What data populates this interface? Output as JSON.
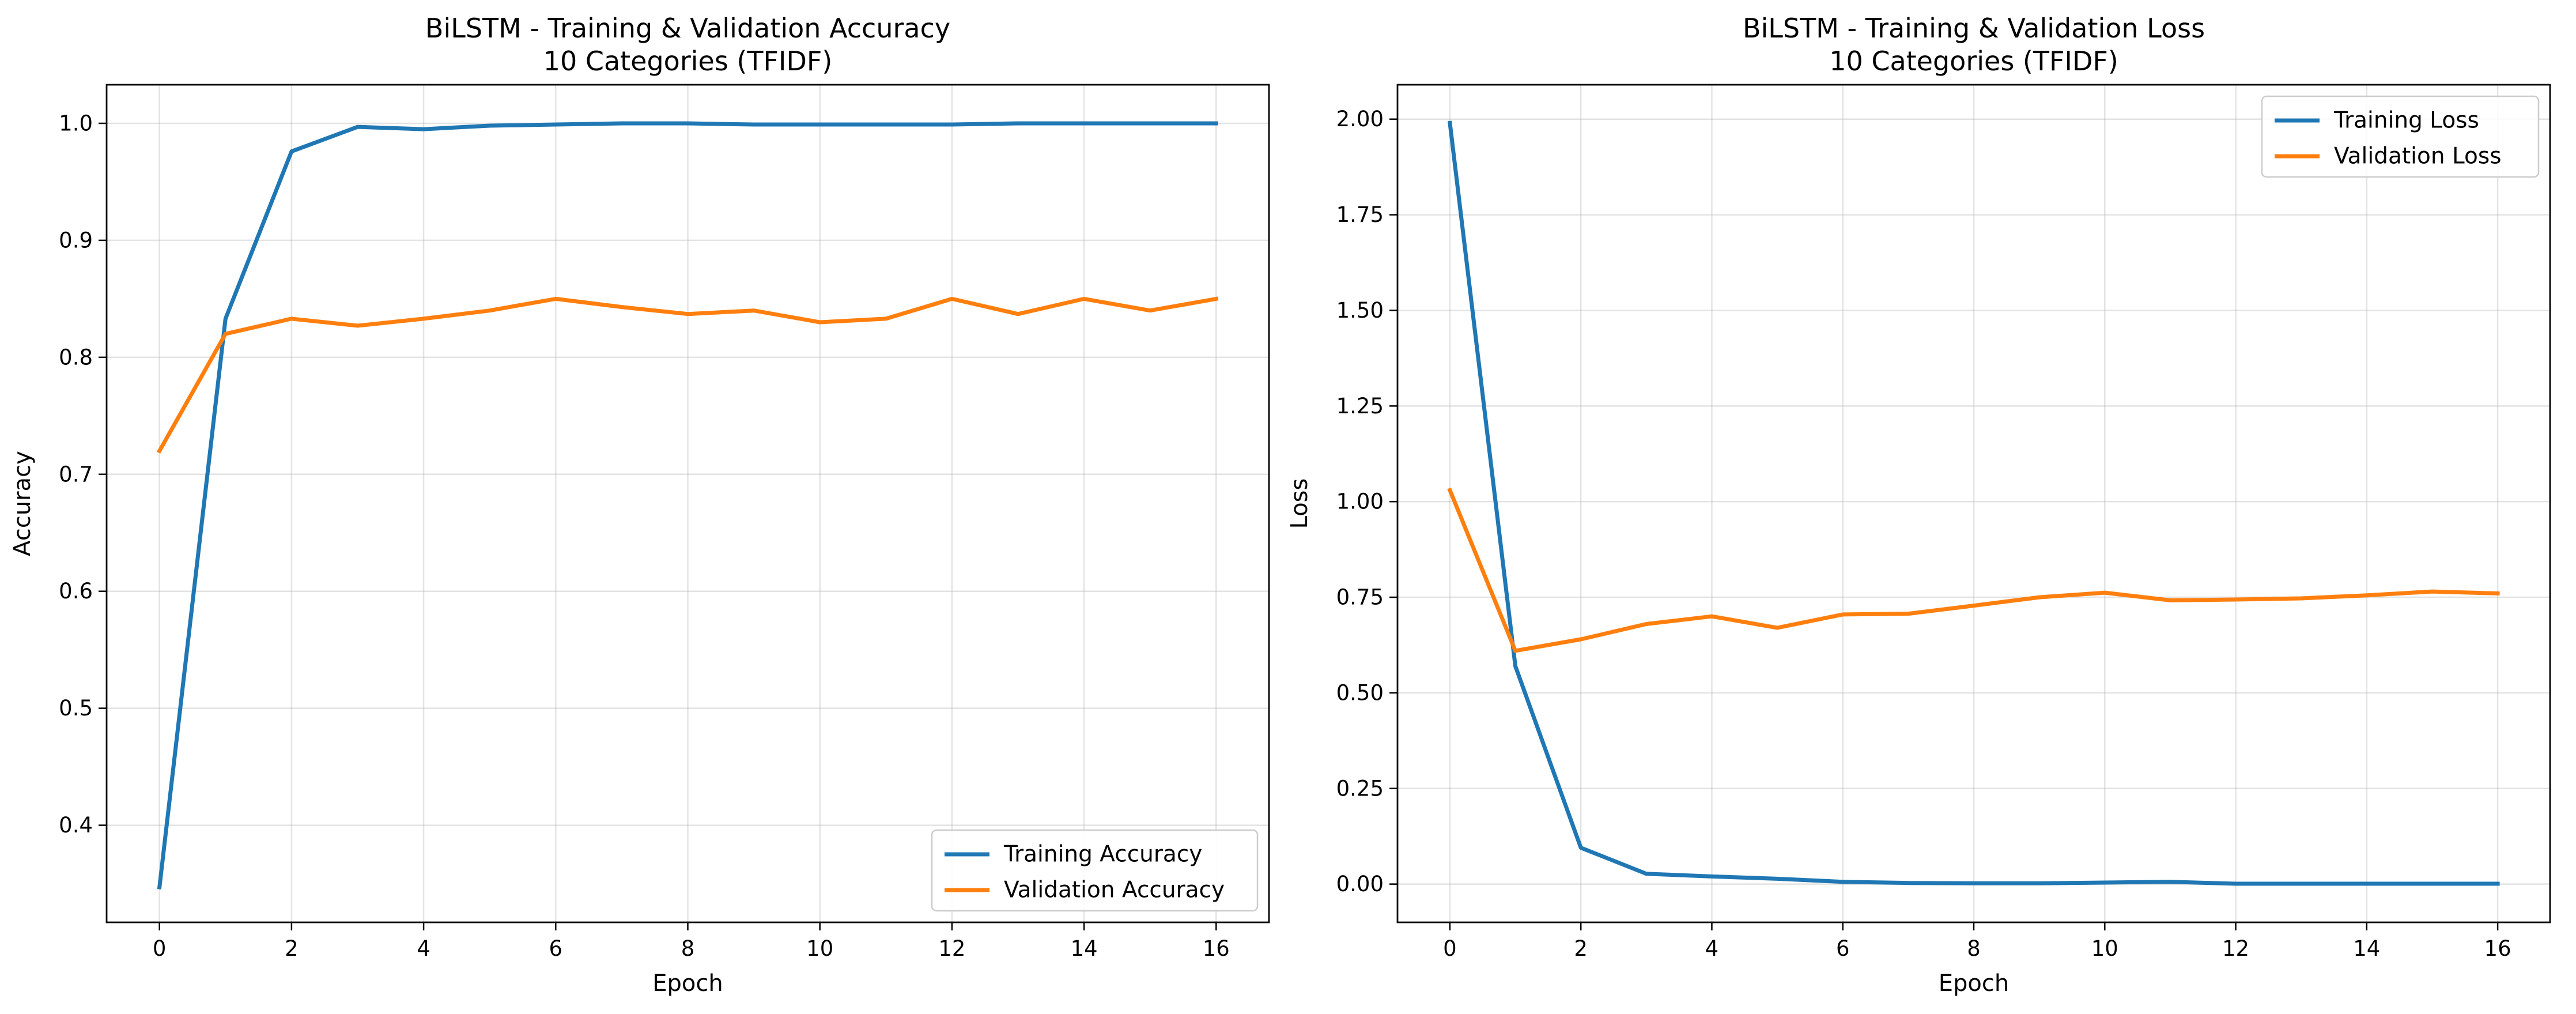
{
  "chart_data": [
    {
      "type": "line",
      "title_lines": [
        "BiLSTM - Training & Validation Accuracy",
        "10 Categories (TFIDF)"
      ],
      "xlabel": "Epoch",
      "ylabel": "Accuracy",
      "xlim": [
        -0.8,
        16.8
      ],
      "ylim": [
        0.317,
        1.033
      ],
      "xticks": [
        0,
        2,
        4,
        6,
        8,
        10,
        12,
        14,
        16
      ],
      "xtick_labels": [
        "0",
        "2",
        "4",
        "6",
        "8",
        "10",
        "12",
        "14",
        "16"
      ],
      "yticks": [
        0.4,
        0.5,
        0.6,
        0.7,
        0.8,
        0.9,
        1.0
      ],
      "ytick_labels": [
        "0.4",
        "0.5",
        "0.6",
        "0.7",
        "0.8",
        "0.9",
        "1.0"
      ],
      "grid": true,
      "legend": "bottom-right",
      "x": [
        0,
        1,
        2,
        3,
        4,
        5,
        6,
        7,
        8,
        9,
        10,
        11,
        12,
        13,
        14,
        15,
        16
      ],
      "series": [
        {
          "name": "Training Accuracy",
          "color": "#1f77b4",
          "values": [
            0.347,
            0.833,
            0.976,
            0.997,
            0.995,
            0.998,
            0.999,
            1.0,
            1.0,
            0.999,
            0.999,
            0.999,
            0.999,
            1.0,
            1.0,
            1.0,
            1.0
          ]
        },
        {
          "name": "Validation Accuracy",
          "color": "#ff7f0e",
          "values": [
            0.72,
            0.82,
            0.833,
            0.827,
            0.833,
            0.84,
            0.85,
            0.843,
            0.837,
            0.84,
            0.83,
            0.833,
            0.85,
            0.837,
            0.85,
            0.84,
            0.85
          ]
        }
      ]
    },
    {
      "type": "line",
      "title_lines": [
        "BiLSTM - Training & Validation Loss",
        "10 Categories (TFIDF)"
      ],
      "xlabel": "Epoch",
      "ylabel": "Loss",
      "xlim": [
        -0.8,
        16.8
      ],
      "ylim": [
        -0.1,
        2.09
      ],
      "xticks": [
        0,
        2,
        4,
        6,
        8,
        10,
        12,
        14,
        16
      ],
      "xtick_labels": [
        "0",
        "2",
        "4",
        "6",
        "8",
        "10",
        "12",
        "14",
        "16"
      ],
      "yticks": [
        0,
        0.25,
        0.5,
        0.75,
        1.0,
        1.25,
        1.5,
        1.75,
        2.0
      ],
      "ytick_labels": [
        "0.00",
        "0.25",
        "0.50",
        "0.75",
        "1.00",
        "1.25",
        "1.50",
        "1.75",
        "2.00"
      ],
      "grid": true,
      "legend": "top-right",
      "x": [
        0,
        1,
        2,
        3,
        4,
        5,
        6,
        7,
        8,
        9,
        10,
        11,
        12,
        13,
        14,
        15,
        16
      ],
      "series": [
        {
          "name": "Training Loss",
          "color": "#1f77b4",
          "values": [
            1.99,
            0.57,
            0.095,
            0.027,
            0.02,
            0.014,
            0.006,
            0.003,
            0.002,
            0.002,
            0.004,
            0.006,
            0.001,
            0.001,
            0.001,
            0.001,
            0.001
          ]
        },
        {
          "name": "Validation Loss",
          "color": "#ff7f0e",
          "values": [
            1.03,
            0.61,
            0.64,
            0.68,
            0.7,
            0.67,
            0.705,
            0.707,
            0.728,
            0.75,
            0.762,
            0.742,
            0.744,
            0.747,
            0.755,
            0.765,
            0.76
          ]
        }
      ]
    }
  ]
}
